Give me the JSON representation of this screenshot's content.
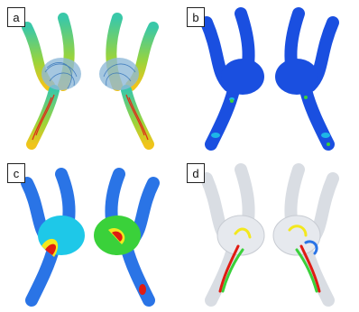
{
  "panels": [
    {
      "label": "a",
      "colormap": "streamlines"
    },
    {
      "label": "b",
      "colormap": "jet"
    },
    {
      "label": "c",
      "colormap": "jet"
    },
    {
      "label": "d",
      "colormap": "isosurface"
    }
  ],
  "colors": {
    "jet_blue": "#1a4fe0",
    "jet_cyan": "#1ec8e8",
    "jet_green": "#3ad13a",
    "jet_yellow": "#f3e81e",
    "jet_red": "#e01c12",
    "vessel_grey": "#d9dde3"
  }
}
